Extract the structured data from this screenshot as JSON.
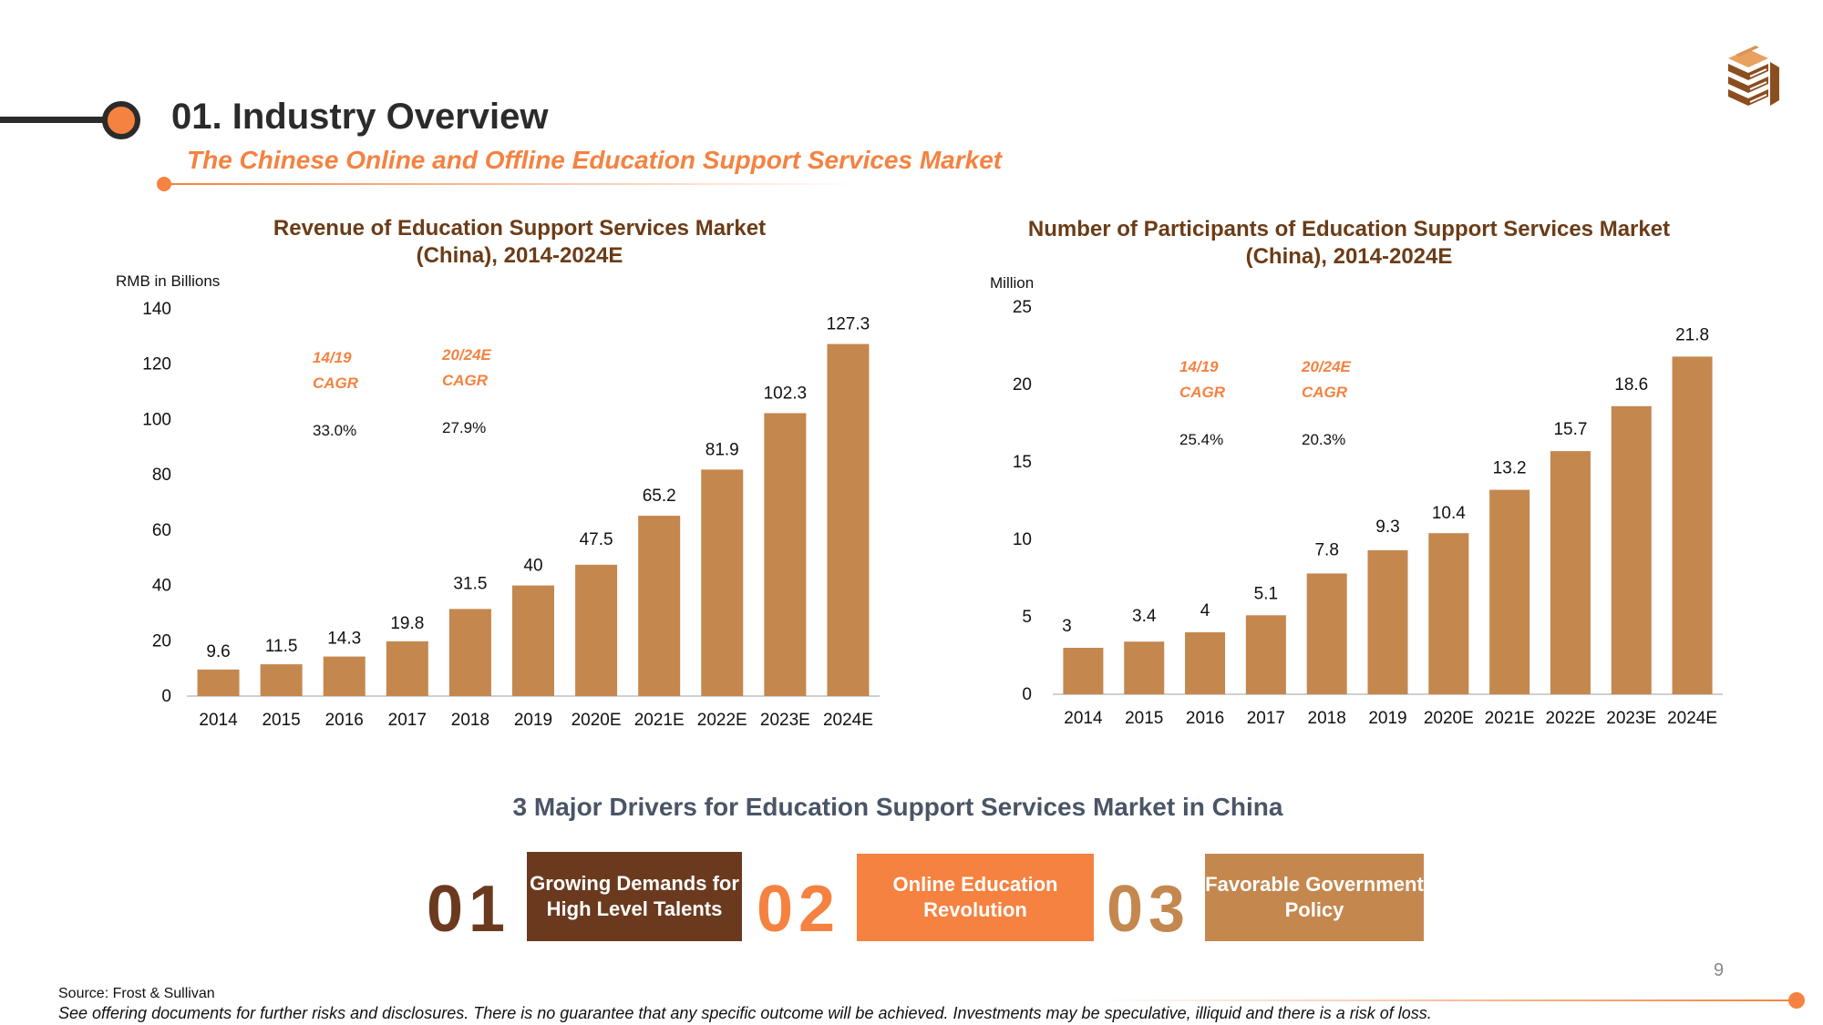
{
  "header": {
    "title": "01. Industry Overview",
    "subtitle": "The Chinese Online and Offline Education Support Services Market"
  },
  "logo_icon": "stacked-books-logo-icon",
  "colors": {
    "bar": "#c4874e",
    "accent": "#f58240",
    "dark_brown": "#6b3c17",
    "driver1": "#6b3a1e",
    "driver2": "#f58240",
    "driver3": "#c4874e"
  },
  "chart_data": [
    {
      "type": "bar",
      "title_line1": "Revenue of Education Support Services Market",
      "title_line2": "(China), 2014-2024E",
      "ylabel": "RMB in Billions",
      "ylim": [
        0,
        140
      ],
      "yticks": [
        0,
        20,
        40,
        60,
        80,
        100,
        120,
        140
      ],
      "categories": [
        "2014",
        "2015",
        "2016",
        "2017",
        "2018",
        "2019",
        "2020E",
        "2021E",
        "2022E",
        "2023E",
        "2024E"
      ],
      "values": [
        9.6,
        11.5,
        14.3,
        19.8,
        31.5,
        40,
        47.5,
        65.2,
        81.9,
        102.3,
        127.3
      ],
      "cagr": [
        {
          "period": "14/19",
          "label": "CAGR",
          "value": "33.0%"
        },
        {
          "period": "20/24E",
          "label": "CAGR",
          "value": "27.9%"
        }
      ]
    },
    {
      "type": "bar",
      "title_line1": "Number of Participants of Education Support Services Market",
      "title_line2": "(China), 2014-2024E",
      "ylabel": "Million",
      "ylim": [
        0,
        25
      ],
      "yticks": [
        0,
        5,
        10,
        15,
        20,
        25
      ],
      "categories": [
        "2014",
        "2015",
        "2016",
        "2017",
        "2018",
        "2019",
        "2020E",
        "2021E",
        "2022E",
        "2023E",
        "2024E"
      ],
      "values": [
        3,
        3.4,
        4,
        5.1,
        7.8,
        9.3,
        10.4,
        13.2,
        15.7,
        18.6,
        21.8
      ],
      "cagr": [
        {
          "period": "14/19",
          "label": "CAGR",
          "value": "25.4%"
        },
        {
          "period": "20/24E",
          "label": "CAGR",
          "value": "20.3%"
        }
      ]
    }
  ],
  "drivers": {
    "title": "3 Major Drivers for Education Support Services Market in China",
    "items": [
      {
        "number": "01",
        "text": "Growing Demands for High Level Talents"
      },
      {
        "number": "02",
        "text": "Online Education Revolution"
      },
      {
        "number": "03",
        "text": "Favorable Government Policy"
      }
    ]
  },
  "footer": {
    "page_number": "9",
    "source": "Source: Frost & Sullivan",
    "disclaimer": "See offering documents for further risks and disclosures. There is no guarantee that any specific outcome will be achieved. Investments may be speculative, illiquid and there is a risk of loss."
  }
}
